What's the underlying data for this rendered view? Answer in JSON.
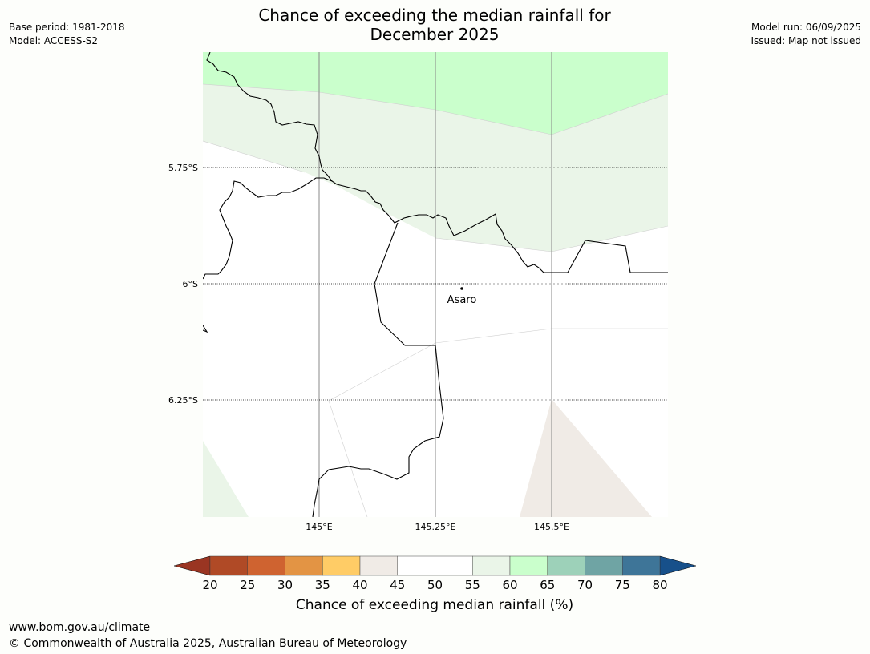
{
  "header": {
    "title_line1": "Chance of exceeding the median rainfall for",
    "title_line2": "December 2025",
    "base_period": "Base period: 1981-2018",
    "model": "Model: ACCESS-S2",
    "model_run": "Model run: 06/09/2025",
    "issued": "Issued: Map not issued"
  },
  "map": {
    "latitude_labels": [
      "5.75°S",
      "6°S",
      "6.25°S"
    ],
    "longitude_labels": [
      "145°E",
      "145.25°E",
      "145.5°E"
    ],
    "place": {
      "name": "Asaro"
    },
    "colors": {
      "land_background": "#ffffff",
      "bin_55_60": "#eaf5e8",
      "bin_60_65": "#caffcc",
      "bin_40_45": "#f0ebe6",
      "coast": "#000000",
      "meridian": "#888888"
    }
  },
  "colorbar": {
    "ticks": [
      "20",
      "25",
      "30",
      "35",
      "40",
      "45",
      "50",
      "55",
      "60",
      "65",
      "70",
      "75",
      "80"
    ],
    "under_color": "#9a3522",
    "over_color": "#17508a",
    "colors": [
      "#b04a26",
      "#cf6330",
      "#e39444",
      "#ffcc66",
      "#f0ebe6",
      "#ffffff",
      "#ffffff",
      "#eaf5e8",
      "#caffcc",
      "#9dd1b9",
      "#6fa4a4",
      "#3e7598"
    ],
    "label": "Chance of exceeding median rainfall (%)"
  },
  "footer": {
    "url": "www.bom.gov.au/climate",
    "copyright": "© Commonwealth of Australia 2025, Australian Bureau of Meteorology"
  }
}
